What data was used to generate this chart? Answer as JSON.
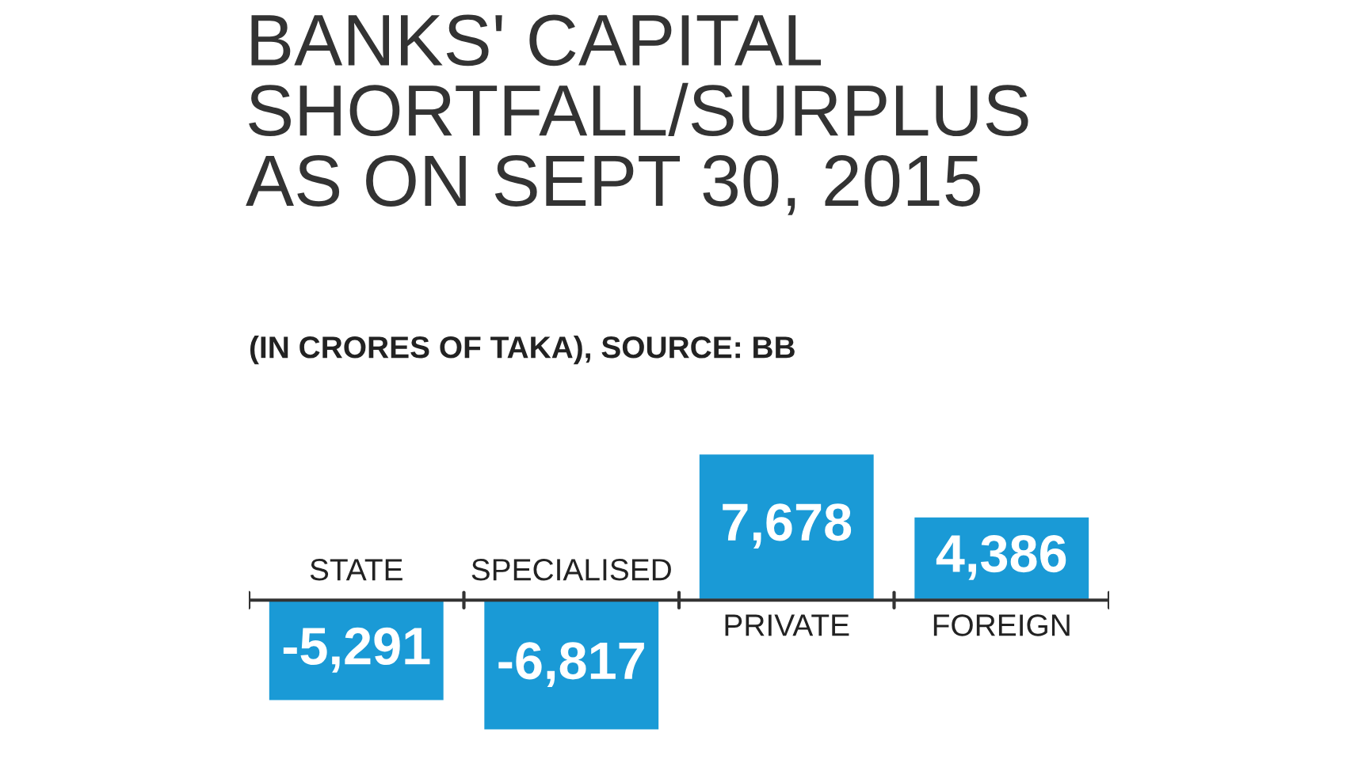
{
  "chart_data": {
    "type": "bar",
    "title": "BANKS' CAPITAL\nSHORTFALL/SURPLUS\nAS ON SEPT 30, 2015",
    "subtitle": "(IN CRORES OF TAKA), SOURCE: BB",
    "categories": [
      "STATE",
      "SPECIALISED",
      "PRIVATE",
      "FOREIGN"
    ],
    "values": [
      -5291,
      -6817,
      7678,
      4386
    ],
    "value_labels": [
      "-5,291",
      "-6,817",
      "7,678",
      "4,386"
    ],
    "color": "#1a9ad6"
  }
}
